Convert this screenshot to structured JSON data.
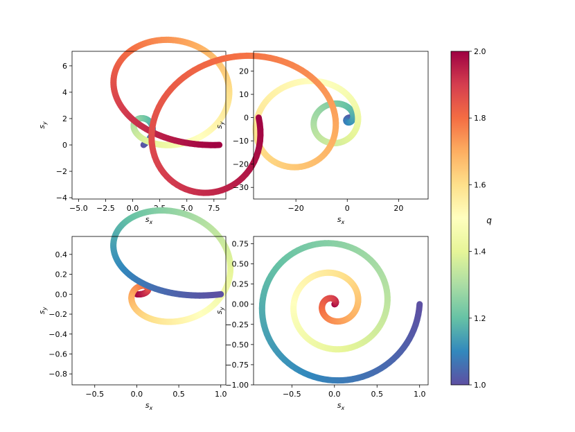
{
  "chart_data": [
    {
      "type": "scatter",
      "panel": "top-left",
      "xlabel": "s_x",
      "ylabel": "s_y",
      "xlim": [
        -5.6,
        8.6
      ],
      "ylim": [
        -4.1,
        7.1
      ],
      "xticks": [
        -5.0,
        -2.5,
        0.0,
        2.5,
        5.0,
        7.5
      ],
      "xtick_labels": [
        "−5.0",
        "−2.5",
        "0.0",
        "2.5",
        "5.0",
        "7.5"
      ],
      "yticks": [
        -4,
        -2,
        0,
        2,
        4,
        6
      ],
      "ytick_labels": [
        "−4",
        "−2",
        "0",
        "2",
        "4",
        "6"
      ],
      "curve": {
        "color_q_start": 1.0,
        "color_q_end": 2.0,
        "start": [
          1.0,
          0.0
        ],
        "end": [
          8.0,
          0.0
        ],
        "turns": 1.75,
        "extremes": {
          "x_min": -5.0,
          "x_max": 8.0,
          "y_min": -3.6,
          "y_max": 6.6
        }
      }
    },
    {
      "type": "scatter",
      "panel": "top-right",
      "xlabel": "s_x",
      "ylabel": "s_y",
      "xlim": [
        -36.5,
        31.5
      ],
      "ylim": [
        -35,
        28.5
      ],
      "xticks": [
        -20,
        0,
        20
      ],
      "xtick_labels": [
        "−20",
        "0",
        "20"
      ],
      "yticks": [
        -30,
        -20,
        -10,
        0,
        10,
        20
      ],
      "ytick_labels": [
        "−30",
        "−20",
        "−10",
        "0",
        "10",
        "20"
      ],
      "curve": {
        "color_q_start": 1.0,
        "color_q_end": 2.0,
        "start": [
          1.0,
          0.0
        ],
        "end": [
          -34.5,
          0.0
        ],
        "turns": 3.5,
        "extremes": {
          "x_min": -34.5,
          "x_max": 30.0,
          "y_min": -32.5,
          "y_max": 26.5
        }
      }
    },
    {
      "type": "scatter",
      "panel": "bottom-left",
      "xlabel": "s_x",
      "ylabel": "s_y",
      "xlim": [
        -0.77,
        1.06
      ],
      "ylim": [
        -0.91,
        0.58
      ],
      "xticks": [
        -0.5,
        0.0,
        0.5,
        1.0
      ],
      "xtick_labels": [
        "−0.5",
        "0.0",
        "0.5",
        "1.0"
      ],
      "yticks": [
        -0.8,
        -0.6,
        -0.4,
        -0.2,
        0.0,
        0.2,
        0.4
      ],
      "ytick_labels": [
        "−0.8",
        "−0.6",
        "−0.4",
        "−0.2",
        "0.0",
        "0.2",
        "0.4"
      ],
      "curve": {
        "color_q_start": 2.0,
        "color_q_end": 1.0,
        "start": [
          0.0,
          0.0
        ],
        "end": [
          1.0,
          0.0
        ],
        "turns": 1.75,
        "extremes": {
          "x_min": -0.7,
          "x_max": 1.0,
          "y_min": -0.85,
          "y_max": 0.5
        }
      }
    },
    {
      "type": "scatter",
      "panel": "bottom-right",
      "xlabel": "s_x",
      "ylabel": "s_y",
      "xlim": [
        -0.95,
        1.1
      ],
      "ylim": [
        -1.0,
        0.84
      ],
      "xticks": [
        -0.5,
        0.0,
        0.5,
        1.0
      ],
      "xtick_labels": [
        "−0.5",
        "0.0",
        "0.5",
        "1.0"
      ],
      "yticks": [
        -1.0,
        -0.75,
        -0.5,
        -0.25,
        0.0,
        0.25,
        0.5,
        0.75
      ],
      "ytick_labels": [
        "−1.00",
        "−0.75",
        "−0.50",
        "−0.25",
        "0.00",
        "0.25",
        "0.50",
        "0.75"
      ],
      "curve": {
        "color_q_start": 2.0,
        "color_q_end": 1.0,
        "start": [
          0.0,
          0.0
        ],
        "end": [
          1.0,
          0.0
        ],
        "turns": 3.0,
        "extremes": {
          "x_min": -0.85,
          "x_max": 1.0,
          "y_min": -0.94,
          "y_max": 0.76
        }
      }
    }
  ],
  "colorbar": {
    "label": "q",
    "colormap": "Spectral_r",
    "range": [
      1.0,
      2.0
    ],
    "ticks": [
      1.0,
      1.2,
      1.4,
      1.6,
      1.8,
      2.0
    ],
    "tick_labels": [
      "1.0",
      "1.2",
      "1.4",
      "1.6",
      "1.8",
      "2.0"
    ],
    "stops": [
      "#5e4fa2",
      "#3288bd",
      "#66c2a5",
      "#abdda4",
      "#e6f598",
      "#ffffbf",
      "#fee08b",
      "#fdae61",
      "#f46d43",
      "#d53e4f",
      "#9e0142"
    ]
  }
}
